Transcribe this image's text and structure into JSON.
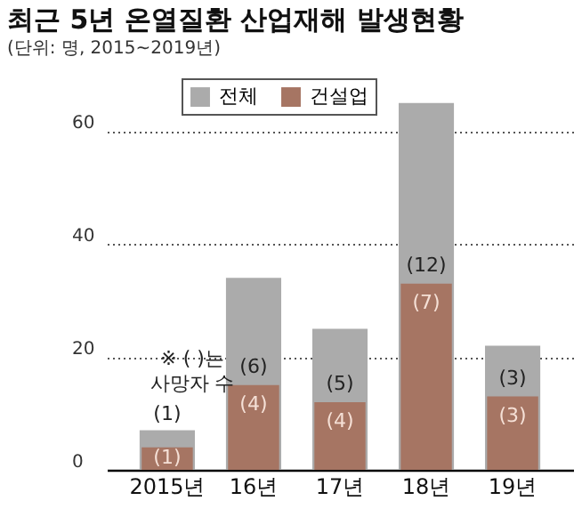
{
  "chart_data": {
    "type": "bar",
    "title": "최근 5년 온열질환 산업재해 발생현황",
    "subtitle": "(단위: 명, 2015~2019년)",
    "categories": [
      "2015년",
      "16년",
      "17년",
      "18년",
      "19년"
    ],
    "series": [
      {
        "name": "전체",
        "color": "#ababab",
        "values": [
          7,
          34,
          25,
          65,
          22
        ]
      },
      {
        "name": "건설업",
        "color": "#a67563",
        "values": [
          4,
          15,
          12,
          33,
          13
        ]
      }
    ],
    "ylim": [
      0,
      70
    ],
    "yticks": [
      0,
      20,
      40,
      60
    ],
    "grid": "y",
    "legend": "top",
    "annotations": [
      "※ ( )는\n사망자 수",
      "(1)",
      "(1)",
      "(6)",
      "(4)",
      "(5)",
      "(4)",
      "(12)",
      "(7)",
      "(3)",
      "(3)"
    ]
  }
}
